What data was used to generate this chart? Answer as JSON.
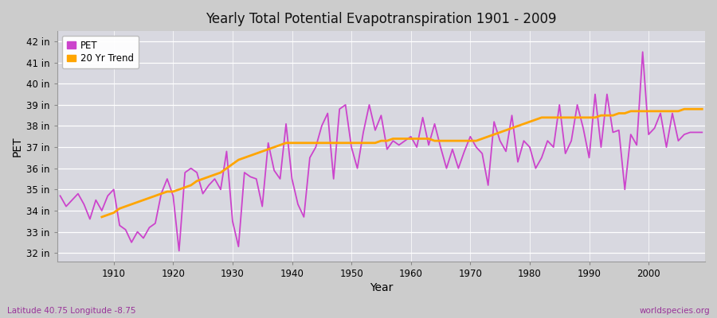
{
  "title": "Yearly Total Potential Evapotranspiration 1901 - 2009",
  "xlabel": "Year",
  "ylabel": "PET",
  "footer_left": "Latitude 40.75 Longitude -8.75",
  "footer_right": "worldspecies.org",
  "ylim": [
    31.6,
    42.5
  ],
  "xlim": [
    1900.5,
    2009.5
  ],
  "yticks": [
    32,
    33,
    34,
    35,
    36,
    37,
    38,
    39,
    40,
    41,
    42
  ],
  "xticks": [
    1910,
    1920,
    1930,
    1940,
    1950,
    1960,
    1970,
    1980,
    1990,
    2000
  ],
  "pet_color": "#CC44CC",
  "trend_color": "#FFA500",
  "fig_bg_color": "#CCCCCC",
  "plot_bg_color": "#D8D8E0",
  "legend_labels": [
    "PET",
    "20 Yr Trend"
  ],
  "pet_values": [
    34.7,
    34.2,
    34.5,
    34.8,
    34.3,
    33.6,
    34.5,
    34.0,
    34.7,
    35.0,
    33.3,
    33.1,
    32.5,
    33.0,
    32.7,
    33.2,
    33.4,
    34.8,
    35.5,
    34.7,
    32.1,
    35.8,
    36.0,
    35.8,
    34.8,
    35.2,
    35.5,
    35.0,
    36.8,
    33.5,
    32.3,
    35.8,
    35.6,
    35.5,
    34.2,
    37.2,
    35.9,
    35.5,
    38.1,
    35.5,
    34.3,
    33.7,
    36.5,
    37.0,
    38.0,
    38.6,
    35.5,
    38.8,
    39.0,
    37.0,
    36.0,
    37.7,
    39.0,
    37.8,
    38.5,
    36.9,
    37.3,
    37.1,
    37.3,
    37.5,
    37.0,
    38.4,
    37.1,
    38.1,
    37.0,
    36.0,
    36.9,
    36.0,
    36.8,
    37.5,
    37.0,
    36.7,
    35.2,
    38.2,
    37.3,
    36.8,
    38.5,
    36.3,
    37.3,
    37.0,
    36.0,
    36.5,
    37.3,
    37.0,
    39.0,
    36.7,
    37.3,
    39.0,
    37.9,
    36.5,
    39.5,
    37.0,
    39.5,
    37.7,
    37.8,
    35.0,
    37.6,
    37.1,
    41.5,
    37.6,
    37.9,
    38.6,
    37.0,
    38.6,
    37.3,
    37.6,
    37.7,
    37.7,
    37.7
  ],
  "trend_start_year": 1908,
  "trend_values": [
    33.7,
    33.8,
    33.9,
    34.1,
    34.2,
    34.3,
    34.4,
    34.5,
    34.6,
    34.7,
    34.8,
    34.9,
    34.9,
    35.0,
    35.1,
    35.2,
    35.4,
    35.5,
    35.6,
    35.7,
    35.8,
    36.0,
    36.2,
    36.4,
    36.5,
    36.6,
    36.7,
    36.8,
    36.9,
    37.0,
    37.1,
    37.2,
    37.2,
    37.2,
    37.2,
    37.2,
    37.2,
    37.2,
    37.2,
    37.2,
    37.2,
    37.2,
    37.2,
    37.2,
    37.2,
    37.2,
    37.2,
    37.3,
    37.3,
    37.4,
    37.4,
    37.4,
    37.4,
    37.4,
    37.4,
    37.4,
    37.3,
    37.3,
    37.3,
    37.3,
    37.3,
    37.3,
    37.3,
    37.3,
    37.4,
    37.5,
    37.6,
    37.7,
    37.8,
    37.9,
    38.0,
    38.1,
    38.2,
    38.3,
    38.4,
    38.4,
    38.4,
    38.4,
    38.4,
    38.4,
    38.4,
    38.4,
    38.4,
    38.4,
    38.5,
    38.5,
    38.5,
    38.6,
    38.6,
    38.7,
    38.7,
    38.7,
    38.7,
    38.7,
    38.7,
    38.7,
    38.7,
    38.7,
    38.8,
    38.8,
    38.8,
    38.8
  ]
}
